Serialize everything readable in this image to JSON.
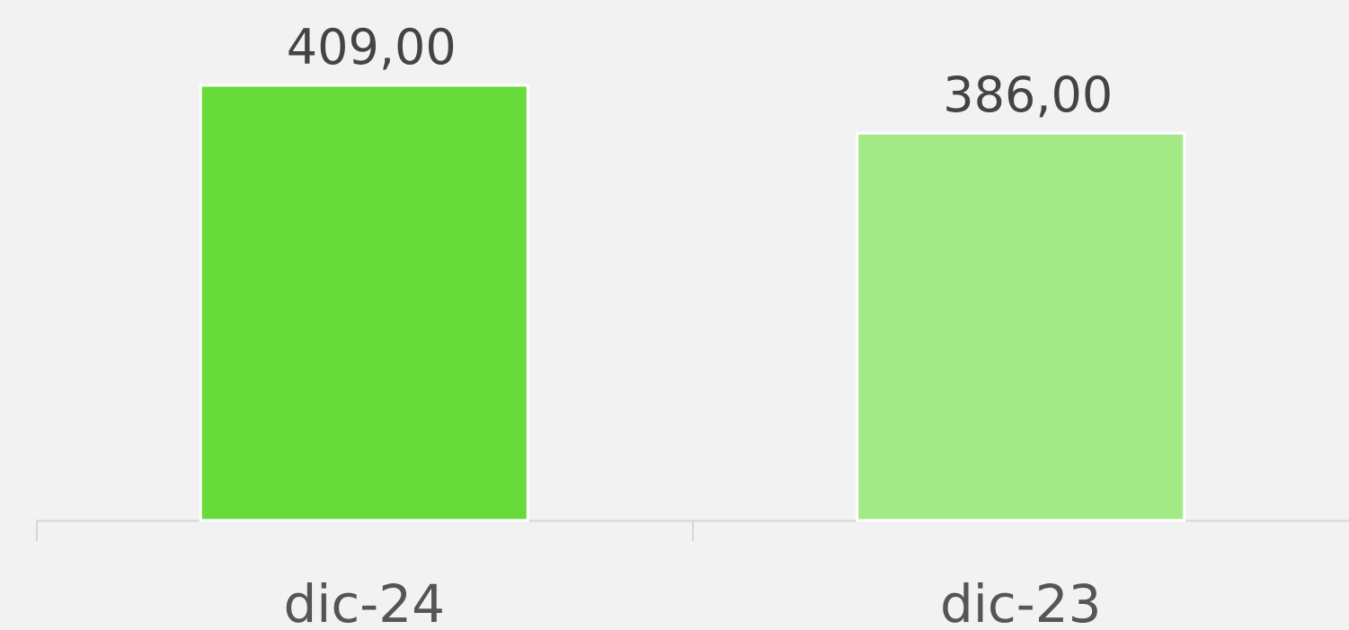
{
  "chart_data": {
    "type": "bar",
    "categories": [
      "dic-24",
      "dic-23"
    ],
    "values": [
      409,
      386
    ],
    "value_labels": [
      "409,00",
      "386,00"
    ],
    "colors": [
      "#66db3a",
      "#a3e986"
    ],
    "ylim": [
      200,
      450
    ]
  }
}
